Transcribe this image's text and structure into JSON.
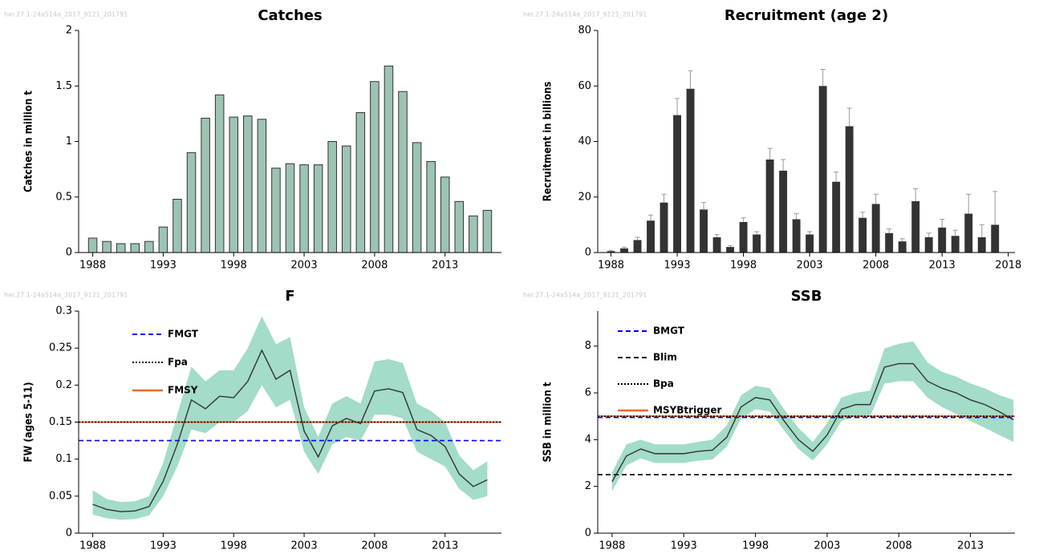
{
  "chart_data": [
    {
      "type": "bar",
      "title": "Catches",
      "source": "her.27.1-24a514a_2017_9121_201791",
      "y_label": "Catches in million t",
      "x": [
        1988,
        1989,
        1990,
        1991,
        1992,
        1993,
        1994,
        1995,
        1996,
        1997,
        1998,
        1999,
        2000,
        2001,
        2002,
        2003,
        2004,
        2005,
        2006,
        2007,
        2008,
        2009,
        2010,
        2011,
        2012,
        2013,
        2014,
        2015,
        2016
      ],
      "values": [
        0.13,
        0.1,
        0.08,
        0.08,
        0.1,
        0.23,
        0.48,
        0.9,
        1.21,
        1.42,
        1.22,
        1.23,
        1.2,
        0.76,
        0.8,
        0.79,
        0.79,
        1.0,
        0.96,
        1.26,
        1.54,
        1.68,
        1.45,
        0.99,
        0.82,
        0.68,
        0.46,
        0.33,
        0.38
      ],
      "color": "#9dc3b3",
      "edge_color": "#333333",
      "xlim": [
        1987,
        2017
      ],
      "xticks": [
        1988,
        1993,
        1998,
        2003,
        2008,
        2013
      ],
      "ylim": [
        0,
        2
      ],
      "yticks": [
        0,
        0.5,
        1,
        1.5,
        2
      ]
    },
    {
      "type": "bar",
      "title": "Recruitment (age 2)",
      "source": "her.27.1-24a514a_2017_9121_201791",
      "y_label": "Recruitment in billions",
      "x": [
        1988,
        1989,
        1990,
        1991,
        1992,
        1993,
        1994,
        1995,
        1996,
        1997,
        1998,
        1999,
        2000,
        2001,
        2002,
        2003,
        2004,
        2005,
        2006,
        2007,
        2008,
        2009,
        2010,
        2011,
        2012,
        2013,
        2014,
        2015,
        2016,
        2017
      ],
      "values": [
        0.5,
        1.5,
        4.5,
        11.5,
        18,
        49.5,
        59,
        15.5,
        5.5,
        2,
        11,
        6.5,
        33.5,
        29.5,
        12,
        6.5,
        60,
        25.5,
        45.5,
        12.5,
        17.5,
        7,
        4,
        18.5,
        5.5,
        9,
        6,
        14,
        5.5,
        10
      ],
      "errors": [
        0.3,
        0.4,
        1,
        2,
        3,
        6,
        6.5,
        2.5,
        1,
        0.5,
        1.5,
        1,
        4,
        4,
        2,
        1,
        6,
        3.5,
        6.5,
        2,
        3.5,
        1.5,
        1,
        4.5,
        1.5,
        3,
        2,
        7,
        4.5,
        12
      ],
      "color": "#333333",
      "error_color": "#999999",
      "xlim": [
        1987,
        2018.5
      ],
      "xticks": [
        1988,
        1993,
        1998,
        2003,
        2008,
        2013,
        2018
      ],
      "ylim": [
        0,
        80
      ],
      "yticks": [
        0,
        20,
        40,
        60,
        80
      ]
    },
    {
      "type": "line",
      "title": "F",
      "source": "her.27.1-24a514a_2017_9121_201791",
      "y_label": "FW (ages 5-11)",
      "x": [
        1988,
        1989,
        1990,
        1991,
        1992,
        1993,
        1994,
        1995,
        1996,
        1997,
        1998,
        1999,
        2000,
        2001,
        2002,
        2003,
        2004,
        2005,
        2006,
        2007,
        2008,
        2009,
        2010,
        2011,
        2012,
        2013,
        2014,
        2015,
        2016
      ],
      "values": [
        0.039,
        0.032,
        0.029,
        0.03,
        0.036,
        0.07,
        0.12,
        0.18,
        0.168,
        0.185,
        0.183,
        0.205,
        0.247,
        0.208,
        0.22,
        0.138,
        0.103,
        0.145,
        0.155,
        0.148,
        0.192,
        0.195,
        0.19,
        0.14,
        0.132,
        0.117,
        0.08,
        0.063,
        0.072
      ],
      "lower": [
        0.025,
        0.02,
        0.018,
        0.019,
        0.024,
        0.05,
        0.09,
        0.14,
        0.135,
        0.15,
        0.15,
        0.165,
        0.2,
        0.17,
        0.18,
        0.11,
        0.08,
        0.12,
        0.13,
        0.125,
        0.16,
        0.16,
        0.155,
        0.11,
        0.1,
        0.09,
        0.06,
        0.045,
        0.05
      ],
      "upper": [
        0.058,
        0.046,
        0.042,
        0.043,
        0.05,
        0.095,
        0.16,
        0.225,
        0.205,
        0.22,
        0.22,
        0.25,
        0.293,
        0.255,
        0.265,
        0.17,
        0.13,
        0.175,
        0.185,
        0.175,
        0.232,
        0.235,
        0.23,
        0.175,
        0.165,
        0.15,
        0.105,
        0.085,
        0.097
      ],
      "color": "#333333",
      "band_color": "#a3dcc9",
      "reference_lines": [
        {
          "name": "FMGT",
          "value": 0.125,
          "color": "#0000ff",
          "style": "dashed"
        },
        {
          "name": "Fpa",
          "value": 0.15,
          "color": "#000000",
          "style": "dotted"
        },
        {
          "name": "FMSY",
          "value": 0.15,
          "color": "#e8692b",
          "style": "solid"
        }
      ],
      "xlim": [
        1987,
        2017
      ],
      "xticks": [
        1988,
        1993,
        1998,
        2003,
        2008,
        2013
      ],
      "ylim": [
        0,
        0.3
      ],
      "yticks": [
        0,
        0.05,
        0.1,
        0.15,
        0.2,
        0.25,
        0.3
      ]
    },
    {
      "type": "line",
      "title": "SSB",
      "source": "her.27.1-24a514a_2017_9121_201791",
      "y_label": "SSB in million t",
      "x": [
        1988,
        1989,
        1990,
        1991,
        1992,
        1993,
        1994,
        1995,
        1996,
        1997,
        1998,
        1999,
        2000,
        2001,
        2002,
        2003,
        2004,
        2005,
        2006,
        2007,
        2008,
        2009,
        2010,
        2011,
        2012,
        2013,
        2014,
        2015,
        2016
      ],
      "values": [
        2.2,
        3.3,
        3.6,
        3.4,
        3.4,
        3.4,
        3.5,
        3.55,
        4.1,
        5.4,
        5.8,
        5.7,
        4.8,
        4.0,
        3.5,
        4.2,
        5.3,
        5.5,
        5.5,
        7.1,
        7.25,
        7.25,
        6.5,
        6.2,
        6.0,
        5.7,
        5.5,
        5.2,
        4.85
      ],
      "lower": [
        1.8,
        2.9,
        3.2,
        3.0,
        3.0,
        3.0,
        3.1,
        3.15,
        3.7,
        4.9,
        5.3,
        5.2,
        4.4,
        3.6,
        3.1,
        3.8,
        4.8,
        5.0,
        5.0,
        6.4,
        6.5,
        6.5,
        5.8,
        5.4,
        5.1,
        4.8,
        4.5,
        4.2,
        3.9
      ],
      "upper": [
        2.6,
        3.8,
        4.0,
        3.8,
        3.8,
        3.8,
        3.9,
        4.0,
        4.6,
        5.9,
        6.3,
        6.2,
        5.3,
        4.5,
        3.9,
        4.7,
        5.8,
        6.0,
        6.1,
        7.9,
        8.1,
        8.2,
        7.3,
        6.9,
        6.7,
        6.4,
        6.2,
        5.9,
        5.7
      ],
      "color": "#333333",
      "band_color": "#a3dcc9",
      "reference_lines": [
        {
          "name": "BMGT",
          "value": 4.95,
          "color": "#0000ff",
          "style": "dashed"
        },
        {
          "name": "Blim",
          "value": 2.5,
          "color": "#000000",
          "style": "dashed"
        },
        {
          "name": "Bpa",
          "value": 5,
          "color": "#000000",
          "style": "dotted"
        },
        {
          "name": "MSYBtrigger",
          "value": 5,
          "color": "#e8692b",
          "style": "solid"
        }
      ],
      "xlim": [
        1987,
        2016.1
      ],
      "xticks": [
        1988,
        1993,
        1998,
        2003,
        2008,
        2013
      ],
      "ylim": [
        0,
        9.5
      ],
      "yticks": [
        0,
        2,
        4,
        6,
        8
      ]
    }
  ]
}
